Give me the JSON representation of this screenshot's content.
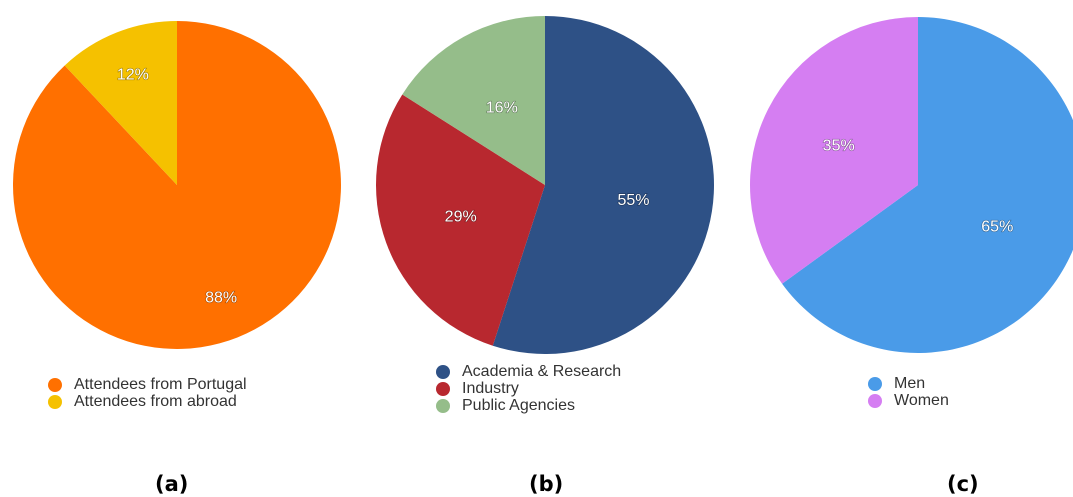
{
  "chart_data": [
    {
      "type": "pie",
      "panel": "(a)",
      "slices": [
        {
          "label": "Attendees from Portugal",
          "value": 88,
          "display": "88%",
          "color": "#ff7000"
        },
        {
          "label": "Attendees from abroad",
          "value": 12,
          "display": "12%",
          "color": "#f5c100"
        }
      ]
    },
    {
      "type": "pie",
      "panel": "(b)",
      "slices": [
        {
          "label": "Academia & Research",
          "value": 55,
          "display": "55%",
          "color": "#2e5186"
        },
        {
          "label": "Industry",
          "value": 29,
          "display": "29%",
          "color": "#b8282f"
        },
        {
          "label": "Public Agencies",
          "value": 16,
          "display": "16%",
          "color": "#95bd8a"
        }
      ]
    },
    {
      "type": "pie",
      "panel": "(c)",
      "slices": [
        {
          "label": "Men",
          "value": 65,
          "display": "65%",
          "color": "#4a9be8"
        },
        {
          "label": "Women",
          "value": 35,
          "display": "35%",
          "color": "#d57ef2"
        }
      ]
    }
  ]
}
